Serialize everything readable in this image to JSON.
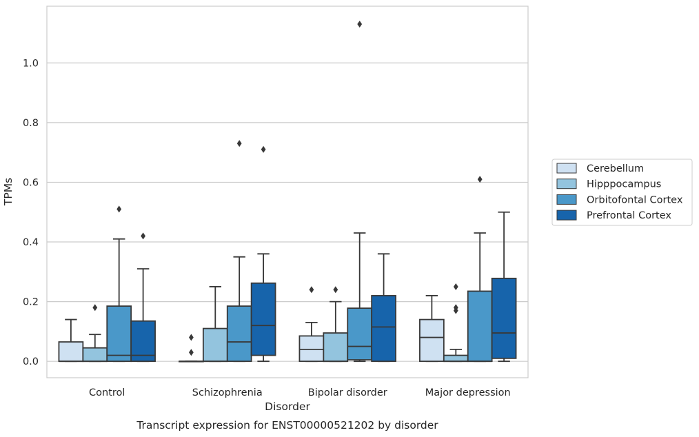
{
  "chart_data": {
    "type": "boxplot",
    "xlabel": "Disorder",
    "ylabel": "TPMs",
    "caption": "Transcript expression for ENST00000521202 by disorder",
    "ylim": [
      -0.055,
      1.19
    ],
    "yticks": [
      0.0,
      0.2,
      0.4,
      0.6,
      0.8,
      1.0
    ],
    "ytick_labels": [
      "0.0",
      "0.2",
      "0.4",
      "0.6",
      "0.8",
      "1.0"
    ],
    "grid": "horizontal",
    "legend_position": "right",
    "categories": [
      "Control",
      "Schizophrenia",
      "Bipolar disorder",
      "Major depression"
    ],
    "series": [
      {
        "name": "Cerebellum",
        "color": "#cfe1f2",
        "boxes": [
          {
            "q1": 0.0,
            "median": 0.0,
            "q3": 0.065,
            "whislo": 0.0,
            "whishi": 0.14,
            "fliers": []
          },
          {
            "q1": 0.0,
            "median": 0.0,
            "q3": 0.0,
            "whislo": 0.0,
            "whishi": 0.0,
            "fliers": [
              0.08,
              0.03
            ]
          },
          {
            "q1": 0.0,
            "median": 0.04,
            "q3": 0.085,
            "whislo": 0.0,
            "whishi": 0.13,
            "fliers": [
              0.24
            ]
          },
          {
            "q1": 0.0,
            "median": 0.08,
            "q3": 0.14,
            "whislo": 0.0,
            "whishi": 0.22,
            "fliers": []
          }
        ]
      },
      {
        "name": "Hipppocampus",
        "color": "#93c4de",
        "boxes": [
          {
            "q1": 0.0,
            "median": 0.0,
            "q3": 0.045,
            "whislo": 0.0,
            "whishi": 0.09,
            "fliers": [
              0.18
            ]
          },
          {
            "q1": 0.0,
            "median": 0.0,
            "q3": 0.11,
            "whislo": 0.0,
            "whishi": 0.25,
            "fliers": []
          },
          {
            "q1": 0.0,
            "median": 0.0,
            "q3": 0.095,
            "whislo": 0.0,
            "whishi": 0.2,
            "fliers": [
              0.24
            ]
          },
          {
            "q1": 0.0,
            "median": 0.0,
            "q3": 0.02,
            "whislo": 0.0,
            "whishi": 0.04,
            "fliers": [
              0.25,
              0.18,
              0.17
            ]
          }
        ]
      },
      {
        "name": "Orbitofontal Cortex",
        "color": "#4a98c9",
        "boxes": [
          {
            "q1": 0.0,
            "median": 0.02,
            "q3": 0.185,
            "whislo": 0.0,
            "whishi": 0.41,
            "fliers": [
              0.51
            ]
          },
          {
            "q1": 0.0,
            "median": 0.065,
            "q3": 0.185,
            "whislo": 0.0,
            "whishi": 0.35,
            "fliers": [
              0.73
            ]
          },
          {
            "q1": 0.005,
            "median": 0.05,
            "q3": 0.178,
            "whislo": 0.0,
            "whishi": 0.43,
            "fliers": [
              1.13
            ]
          },
          {
            "q1": 0.0,
            "median": 0.0,
            "q3": 0.235,
            "whislo": 0.0,
            "whishi": 0.43,
            "fliers": [
              0.61
            ]
          }
        ]
      },
      {
        "name": "Prefrontal Cortex",
        "color": "#1764ab",
        "boxes": [
          {
            "q1": 0.0,
            "median": 0.02,
            "q3": 0.135,
            "whislo": 0.0,
            "whishi": 0.31,
            "fliers": [
              0.42
            ]
          },
          {
            "q1": 0.02,
            "median": 0.12,
            "q3": 0.262,
            "whislo": 0.0,
            "whishi": 0.36,
            "fliers": [
              0.71
            ]
          },
          {
            "q1": 0.0,
            "median": 0.115,
            "q3": 0.22,
            "whislo": 0.0,
            "whishi": 0.36,
            "fliers": []
          },
          {
            "q1": 0.01,
            "median": 0.095,
            "q3": 0.278,
            "whislo": 0.0,
            "whishi": 0.5,
            "fliers": []
          }
        ]
      }
    ]
  }
}
